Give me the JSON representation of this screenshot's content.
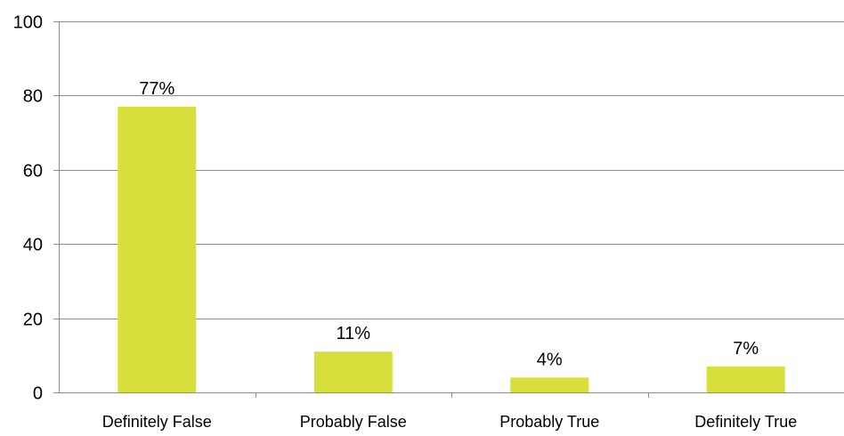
{
  "chart_data": {
    "type": "bar",
    "title": "",
    "xlabel": "",
    "ylabel": "",
    "categories": [
      "Definitely False",
      "Probably False",
      "Probably True",
      "Definitely True"
    ],
    "values": [
      77,
      11,
      4,
      7
    ],
    "data_labels": [
      "77%",
      "11%",
      "4%",
      "7%"
    ],
    "ylim": [
      0,
      100
    ],
    "yticks": [
      0,
      20,
      40,
      60,
      80,
      100
    ],
    "ytick_labels": [
      "0",
      "20",
      "40",
      "60",
      "80",
      "100"
    ],
    "grid": true,
    "legend": "none",
    "bar_color": "#d6df3c"
  }
}
